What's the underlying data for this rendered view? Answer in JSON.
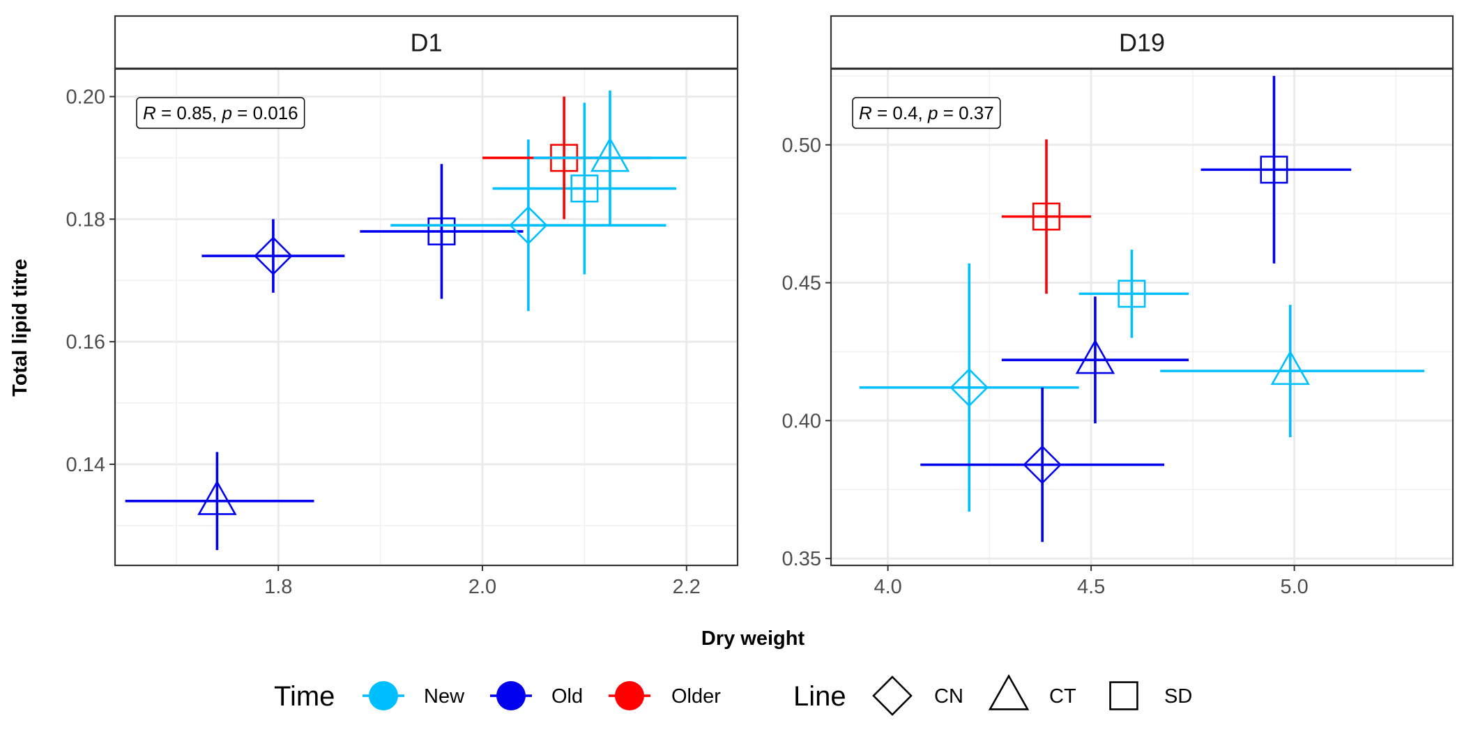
{
  "chart_data": {
    "type": "scatter",
    "xlabel": "Dry weight",
    "ylabel": "Total lipid titre",
    "legend_position": "bottom",
    "legends": [
      {
        "title": "Time",
        "kind": "color",
        "entries": [
          {
            "label": "New",
            "color": "#00BFFF"
          },
          {
            "label": "Old",
            "color": "#0000EE"
          },
          {
            "label": "Older",
            "color": "#FF0000"
          }
        ]
      },
      {
        "title": "Line",
        "kind": "shape",
        "entries": [
          {
            "label": "CN",
            "shape": "diamond"
          },
          {
            "label": "CT",
            "shape": "triangle"
          },
          {
            "label": "SD",
            "shape": "square"
          }
        ]
      }
    ],
    "panels": [
      {
        "strip": "D1",
        "annotation": {
          "r_label": "R",
          "r_value": " = 0.85, ",
          "p_label": "p",
          "p_value": " = 0.016"
        },
        "xlim": [
          1.64,
          2.25
        ],
        "ylim": [
          0.1235,
          0.2045
        ],
        "xticks": [
          1.8,
          2.0,
          2.2
        ],
        "xtick_labels": [
          "1.8",
          "2.0",
          "2.2"
        ],
        "xminor": [
          1.7,
          1.9,
          2.1
        ],
        "yticks": [
          0.14,
          0.16,
          0.18,
          0.2
        ],
        "ytick_labels": [
          "0.14",
          "0.16",
          "0.18",
          "0.20"
        ],
        "yminor": [
          0.13,
          0.15,
          0.17,
          0.19
        ],
        "points": [
          {
            "time": "Old",
            "line": "CT",
            "x": 1.74,
            "y": 0.134,
            "xmin": 1.65,
            "xmax": 1.835,
            "ymin": 0.126,
            "ymax": 0.142
          },
          {
            "time": "Old",
            "line": "CN",
            "x": 1.795,
            "y": 0.174,
            "xmin": 1.725,
            "xmax": 1.865,
            "ymin": 0.168,
            "ymax": 0.18
          },
          {
            "time": "Old",
            "line": "SD",
            "x": 1.96,
            "y": 0.178,
            "xmin": 1.88,
            "xmax": 2.04,
            "ymin": 0.167,
            "ymax": 0.189
          },
          {
            "time": "New",
            "line": "CN",
            "x": 2.045,
            "y": 0.179,
            "xmin": 1.91,
            "xmax": 2.18,
            "ymin": 0.165,
            "ymax": 0.193
          },
          {
            "time": "New",
            "line": "SD",
            "x": 2.1,
            "y": 0.185,
            "xmin": 2.01,
            "xmax": 2.19,
            "ymin": 0.171,
            "ymax": 0.199
          },
          {
            "time": "Older",
            "line": "SD",
            "x": 2.08,
            "y": 0.19,
            "xmin": 2.0,
            "xmax": 2.165,
            "ymin": 0.18,
            "ymax": 0.2
          },
          {
            "time": "New",
            "line": "CT",
            "x": 2.125,
            "y": 0.19,
            "xmin": 2.05,
            "xmax": 2.2,
            "ymin": 0.179,
            "ymax": 0.201
          }
        ]
      },
      {
        "strip": "D19",
        "annotation": {
          "r_label": "R",
          "r_value": " = 0.4, ",
          "p_label": "p",
          "p_value": " = 0.37"
        },
        "xlim": [
          3.86,
          5.39
        ],
        "ylim": [
          0.3475,
          0.5275
        ],
        "xticks": [
          4.0,
          4.5,
          5.0
        ],
        "xtick_labels": [
          "4.0",
          "4.5",
          "5.0"
        ],
        "xminor": [
          4.25,
          4.75,
          5.25
        ],
        "yticks": [
          0.35,
          0.4,
          0.45,
          0.5
        ],
        "ytick_labels": [
          "0.35",
          "0.40",
          "0.45",
          "0.50"
        ],
        "yminor": [
          0.375,
          0.425,
          0.475,
          0.525
        ],
        "points": [
          {
            "time": "New",
            "line": "CN",
            "x": 4.2,
            "y": 0.412,
            "xmin": 3.93,
            "xmax": 4.47,
            "ymin": 0.367,
            "ymax": 0.457
          },
          {
            "time": "Old",
            "line": "CN",
            "x": 4.38,
            "y": 0.384,
            "xmin": 4.08,
            "xmax": 4.68,
            "ymin": 0.356,
            "ymax": 0.412
          },
          {
            "time": "Older",
            "line": "SD",
            "x": 4.39,
            "y": 0.474,
            "xmin": 4.28,
            "xmax": 4.5,
            "ymin": 0.446,
            "ymax": 0.502
          },
          {
            "time": "Old",
            "line": "CT",
            "x": 4.51,
            "y": 0.422,
            "xmin": 4.28,
            "xmax": 4.74,
            "ymin": 0.399,
            "ymax": 0.445
          },
          {
            "time": "New",
            "line": "SD",
            "x": 4.6,
            "y": 0.446,
            "xmin": 4.47,
            "xmax": 4.74,
            "ymin": 0.43,
            "ymax": 0.462
          },
          {
            "time": "Old",
            "line": "SD",
            "x": 4.95,
            "y": 0.491,
            "xmin": 4.77,
            "xmax": 5.14,
            "ymin": 0.457,
            "ymax": 0.525
          },
          {
            "time": "New",
            "line": "CT",
            "x": 4.99,
            "y": 0.418,
            "xmin": 4.67,
            "xmax": 5.32,
            "ymin": 0.394,
            "ymax": 0.442
          }
        ]
      }
    ]
  }
}
